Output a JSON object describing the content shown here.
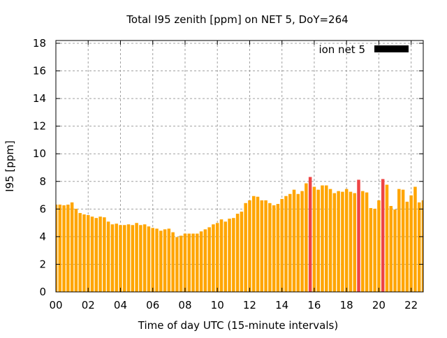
{
  "chart_data": {
    "type": "bar",
    "title": "Total I95 zenith [ppm] on NET 5, DoY=264",
    "xlabel": "Time of day UTC (15-minute intervals)",
    "ylabel": "I95 [ppm]",
    "xlim": [
      0,
      22.75
    ],
    "ylim": [
      0,
      18.2
    ],
    "grid": true,
    "legend": {
      "placement": "top-right",
      "entries": [
        {
          "label": "ion net 5",
          "color": "#000000"
        }
      ]
    },
    "x_ticks": [
      {
        "value": 0,
        "label": "00"
      },
      {
        "value": 2,
        "label": "02"
      },
      {
        "value": 4,
        "label": "04"
      },
      {
        "value": 6,
        "label": "06"
      },
      {
        "value": 8,
        "label": "08"
      },
      {
        "value": 10,
        "label": "10"
      },
      {
        "value": 12,
        "label": "12"
      },
      {
        "value": 14,
        "label": "14"
      },
      {
        "value": 16,
        "label": "16"
      },
      {
        "value": 18,
        "label": "18"
      },
      {
        "value": 20,
        "label": "20"
      },
      {
        "value": 22,
        "label": "22"
      }
    ],
    "y_ticks": [
      0,
      2,
      4,
      6,
      8,
      10,
      12,
      14,
      16,
      18
    ],
    "bar_interval_hours": 0.25,
    "threshold": 8,
    "colors": {
      "normal": "#ffa500",
      "above_threshold": "#ee4444"
    },
    "values": [
      6.32,
      6.32,
      6.27,
      6.32,
      6.48,
      6.02,
      5.71,
      5.61,
      5.56,
      5.45,
      5.35,
      5.45,
      5.4,
      5.09,
      4.89,
      4.94,
      4.84,
      4.84,
      4.89,
      4.84,
      4.99,
      4.84,
      4.89,
      4.74,
      4.63,
      4.58,
      4.43,
      4.53,
      4.58,
      4.32,
      3.97,
      4.07,
      4.22,
      4.22,
      4.22,
      4.22,
      4.38,
      4.53,
      4.68,
      4.89,
      4.99,
      5.25,
      5.09,
      5.3,
      5.35,
      5.66,
      5.81,
      6.43,
      6.63,
      6.94,
      6.89,
      6.63,
      6.63,
      6.43,
      6.27,
      6.37,
      6.73,
      6.94,
      7.09,
      7.4,
      7.09,
      7.3,
      7.86,
      8.32,
      7.61,
      7.4,
      7.71,
      7.71,
      7.45,
      7.15,
      7.3,
      7.25,
      7.45,
      7.25,
      7.15,
      8.12,
      7.3,
      7.2,
      6.07,
      6.02,
      6.63,
      8.17,
      7.76,
      6.22,
      5.97,
      7.45,
      7.4,
      6.53,
      6.99,
      7.61,
      6.48,
      6.63
    ]
  }
}
